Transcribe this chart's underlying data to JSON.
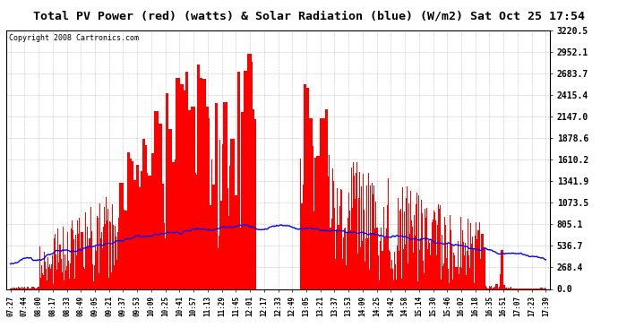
{
  "title": "Total PV Power (red) (watts) & Solar Radiation (blue) (W/m2) Sat Oct 25 17:54",
  "copyright": "Copyright 2008 Cartronics.com",
  "y_max": 3220.5,
  "y_min": 0.0,
  "y_ticks": [
    0.0,
    268.4,
    536.7,
    805.1,
    1073.5,
    1341.9,
    1610.2,
    1878.6,
    2147.0,
    2415.4,
    2683.7,
    2952.1,
    3220.5
  ],
  "x_labels": [
    "07:27",
    "07:44",
    "08:00",
    "08:17",
    "08:33",
    "08:49",
    "09:05",
    "09:21",
    "09:37",
    "09:53",
    "10:09",
    "10:25",
    "10:41",
    "10:57",
    "11:13",
    "11:29",
    "11:45",
    "12:01",
    "12:17",
    "12:33",
    "12:49",
    "13:05",
    "13:21",
    "13:37",
    "13:53",
    "14:09",
    "14:25",
    "14:42",
    "14:58",
    "15:14",
    "15:30",
    "15:46",
    "16:02",
    "16:18",
    "16:35",
    "16:51",
    "17:07",
    "17:23",
    "17:39"
  ],
  "background_color": "#ffffff",
  "bar_color": "#ff0000",
  "line_color": "#0000ff",
  "grid_color": "#aaaaaa",
  "figsize": [
    6.9,
    3.75
  ],
  "dpi": 100
}
